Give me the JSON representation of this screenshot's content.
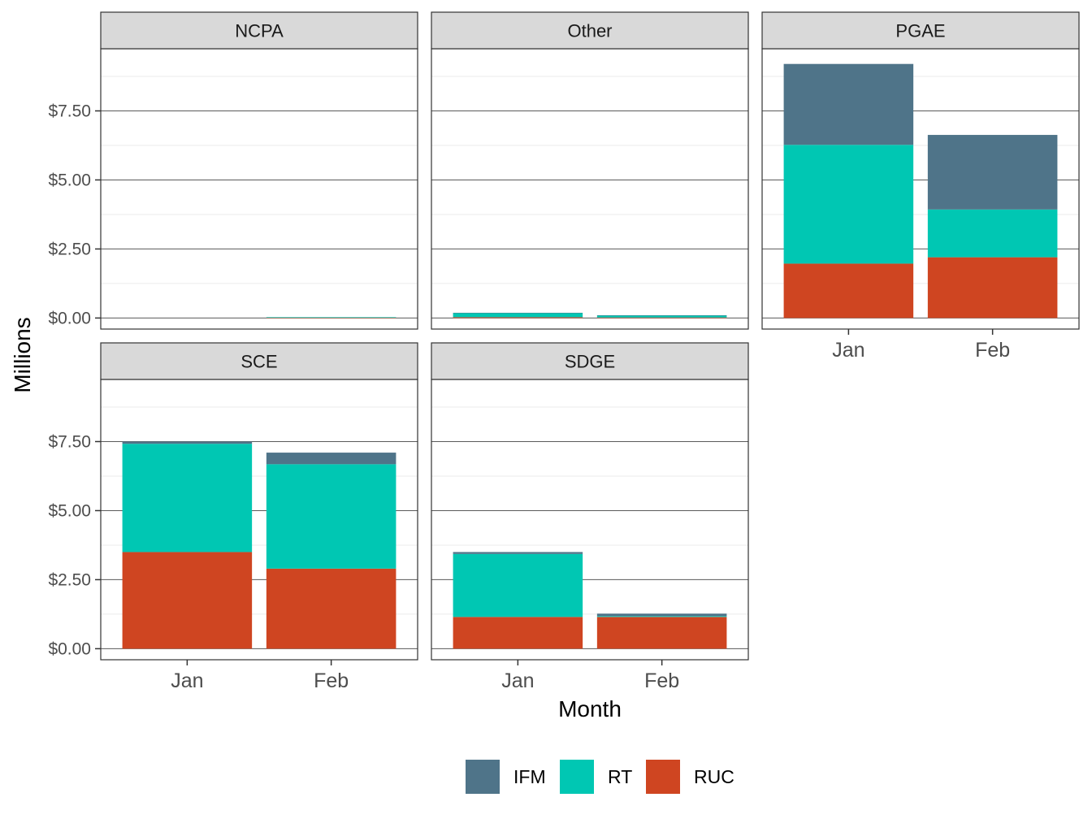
{
  "chart_data": {
    "type": "bar",
    "stacked": true,
    "faceted": true,
    "xlabel": "Month",
    "ylabel": "Millions",
    "categories": [
      "Jan",
      "Feb"
    ],
    "ylim": [
      -0.4,
      9.75
    ],
    "yticks": [
      0,
      2.5,
      5,
      7.5
    ],
    "ytick_labels": [
      "$0.00",
      "$2.50",
      "$5.00",
      "$7.50"
    ],
    "grid": true,
    "legend_position": "bottom",
    "legend": [
      {
        "name": "IFM",
        "color": "#4f7489"
      },
      {
        "name": "RT",
        "color": "#00c7b3"
      },
      {
        "name": "RUC",
        "color": "#cf4521"
      }
    ],
    "stack_order": [
      "RUC",
      "RT",
      "IFM"
    ],
    "panels": [
      {
        "title": "NCPA",
        "series": {
          "RUC": [
            0,
            0.01
          ],
          "RT": [
            0,
            0.02
          ],
          "IFM": [
            0,
            0
          ]
        }
      },
      {
        "title": "Other",
        "series": {
          "RUC": [
            0.03,
            0.02
          ],
          "RT": [
            0.15,
            0.07
          ],
          "IFM": [
            0.01,
            0.01
          ]
        }
      },
      {
        "title": "PGAE",
        "series": {
          "RUC": [
            1.97,
            2.2
          ],
          "RT": [
            4.3,
            1.73
          ],
          "IFM": [
            2.93,
            2.7
          ]
        }
      },
      {
        "title": "SCE",
        "series": {
          "RUC": [
            3.5,
            2.9
          ],
          "RT": [
            3.92,
            3.78
          ],
          "IFM": [
            0.08,
            0.42
          ]
        }
      },
      {
        "title": "SDGE",
        "series": {
          "RUC": [
            1.15,
            1.15
          ],
          "RT": [
            2.28,
            0.03
          ],
          "IFM": [
            0.07,
            0.09
          ]
        }
      }
    ]
  }
}
